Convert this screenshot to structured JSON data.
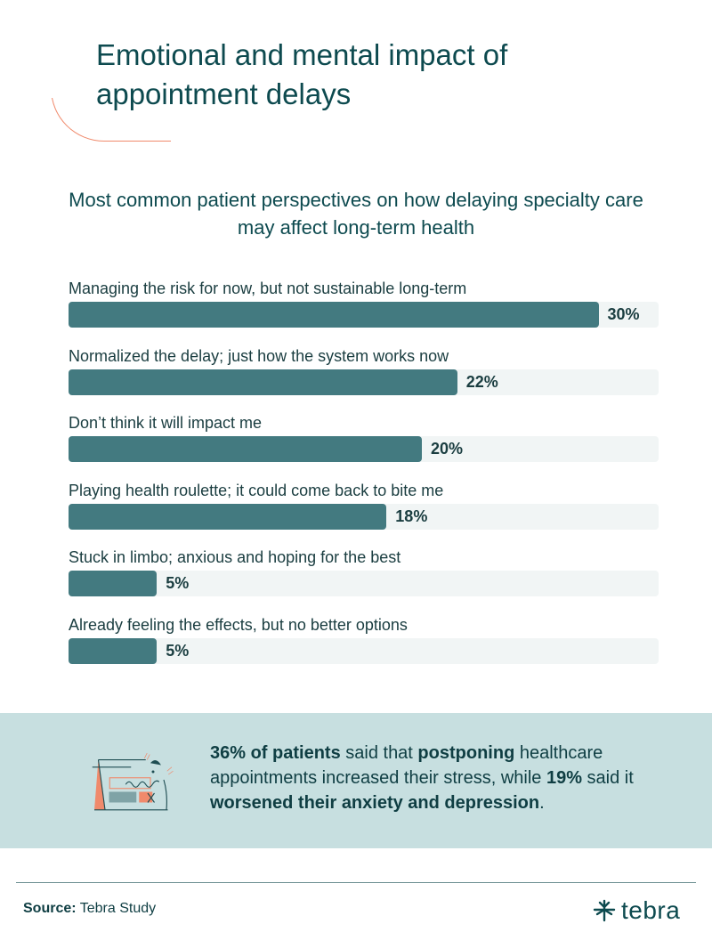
{
  "title": "Emotional and mental impact of appointment delays",
  "colors": {
    "title": "#0d4a4f",
    "bar": "#437a80",
    "track": "#f1f5f5",
    "accent": "#f08a6c",
    "callout_bg": "#c7dfe0"
  },
  "chart_data": {
    "type": "bar",
    "orientation": "horizontal",
    "title": "Most common patient perspectives on how delaying specialty care may affect long-term health",
    "categories": [
      "Managing the risk for now, but not sustainable long-term",
      "Normalized the delay; just how the system works now",
      "Don’t think it will impact me",
      "Playing health roulette; it could come back to bite me",
      "Stuck in limbo; anxious and hoping for the best",
      "Already feeling the effects, but no better options"
    ],
    "values": [
      30,
      22,
      20,
      18,
      5,
      5
    ],
    "value_labels": [
      "30%",
      "22%",
      "20%",
      "18%",
      "5%",
      "5%"
    ],
    "unit": "%"
  },
  "callout": {
    "parts": [
      {
        "text": "36% of patients",
        "bold": true
      },
      {
        "text": " said that ",
        "bold": false
      },
      {
        "text": "postponing",
        "bold": true
      },
      {
        "text": " healthcare appointments increased their stress, while ",
        "bold": false
      },
      {
        "text": "19%",
        "bold": true
      },
      {
        "text": " said it ",
        "bold": false
      },
      {
        "text": "worsened their anxiety and depression",
        "bold": true
      },
      {
        "text": ".",
        "bold": false
      }
    ],
    "icon": "calendar-stress-illustration"
  },
  "footer": {
    "source_label": "Source:",
    "source_value": " Tebra Study",
    "logo": "tebra"
  }
}
